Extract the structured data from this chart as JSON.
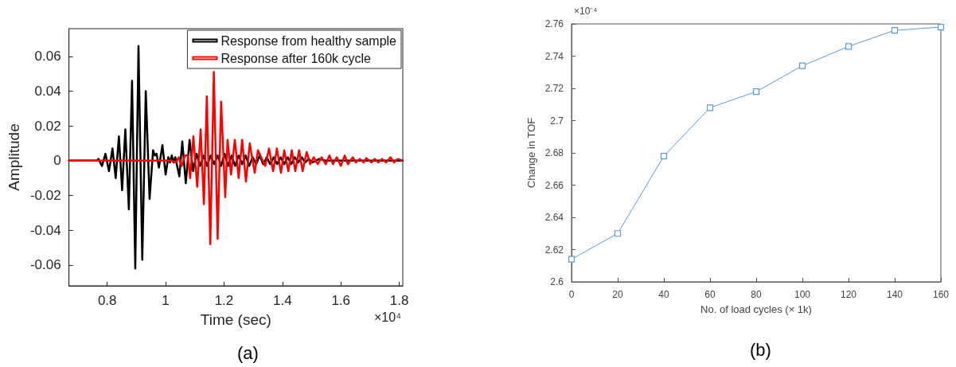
{
  "chart_data": [
    {
      "type": "line",
      "xlabel": "Time (sec)",
      "ylabel": "Amplitude",
      "xlim": [
        0.669,
        1.812
      ],
      "xticks": [
        0.8,
        1,
        1.2,
        1.4,
        1.6,
        1.8
      ],
      "ylim": [
        -0.072,
        0.076
      ],
      "yticks": [
        -0.06,
        -0.04,
        -0.02,
        0,
        0.02,
        0.04,
        0.06
      ],
      "legend": "top right",
      "grid": false,
      "marker": "none",
      "line_style": "solid",
      "annotations": [
        "×10⁴",
        "(a)"
      ],
      "series": [
        {
          "name": "Response from healthy sample",
          "color": "#000000",
          "x": [
            0.669,
            0.764,
            0.77,
            0.782,
            0.794,
            0.806,
            0.818,
            0.829,
            0.84,
            0.851,
            0.862,
            0.874,
            0.885,
            0.896,
            0.907,
            0.92,
            0.932,
            0.945,
            0.957,
            0.963,
            0.969,
            0.977,
            0.989,
            1.0,
            1.009,
            1.015,
            1.021,
            1.027,
            1.033,
            1.047,
            1.057,
            1.069,
            1.082,
            1.094,
            1.106,
            1.118,
            1.13,
            1.142,
            1.154,
            1.166,
            1.178,
            1.19,
            1.202,
            1.214,
            1.226,
            1.238,
            1.25,
            1.262,
            1.274,
            1.286,
            1.298,
            1.31,
            1.322,
            1.334,
            1.346,
            1.358,
            1.37,
            1.382,
            1.394,
            1.406,
            1.418,
            1.43,
            1.442,
            1.454,
            1.466,
            1.478,
            1.49,
            1.502,
            1.526,
            1.55,
            1.6,
            1.812
          ],
          "values": [
            0,
            0,
            0.001,
            -0.003,
            0.004,
            -0.006,
            0.007,
            -0.01,
            0.014,
            -0.017,
            0.018,
            -0.028,
            0.046,
            -0.062,
            0.066,
            -0.057,
            0.04,
            -0.022,
            0.006,
            0.003,
            0.004,
            -0.004,
            0.009,
            -0.008,
            0.002,
            -0.001,
            0.003,
            -0.001,
            0.002,
            -0.009,
            0.011,
            -0.013,
            0.012,
            -0.006,
            0.004,
            -0.003,
            0.003,
            -0.003,
            0.003,
            -0.002,
            0.003,
            -0.003,
            0.004,
            -0.003,
            0.003,
            -0.003,
            0.003,
            -0.002,
            0.003,
            -0.003,
            0.002,
            -0.002,
            0.003,
            -0.002,
            0.002,
            -0.002,
            0.002,
            -0.002,
            0.002,
            -0.002,
            0.002,
            -0.002,
            0.002,
            -0.001,
            0.002,
            -0.001,
            0.001,
            -0.001,
            0.001,
            0,
            0,
            0
          ]
        },
        {
          "name": "Response after 160k cycle",
          "color": "#ff0000",
          "x": [
            0.669,
            1.0,
            1.02,
            1.035,
            1.045,
            1.055,
            1.066,
            1.076,
            1.084,
            1.095,
            1.108,
            1.12,
            1.131,
            1.141,
            1.153,
            1.165,
            1.178,
            1.19,
            1.204,
            1.212,
            1.224,
            1.237,
            1.25,
            1.262,
            1.275,
            1.288,
            1.305,
            1.316,
            1.341,
            1.354,
            1.368,
            1.381,
            1.395,
            1.406,
            1.42,
            1.432,
            1.444,
            1.457,
            1.469,
            1.483,
            1.495,
            1.507,
            1.521,
            1.534,
            1.548,
            1.561,
            1.573,
            1.586,
            1.6,
            1.613,
            1.624,
            1.641,
            1.651,
            1.665,
            1.678,
            1.687,
            1.705,
            1.716,
            1.728,
            1.741,
            1.755,
            1.77,
            1.782,
            1.795,
            1.812
          ],
          "values": [
            0,
            0,
            0,
            -0.001,
            0.002,
            -0.003,
            0.003,
            0.003,
            -0.01,
            0.014,
            -0.015,
            0.018,
            -0.025,
            0.037,
            -0.048,
            0.051,
            -0.045,
            0.034,
            -0.021,
            0.012,
            -0.008,
            0.012,
            -0.01,
            0.012,
            -0.012,
            0.01,
            -0.007,
            0.006,
            -0.003,
            0.007,
            -0.006,
            0.007,
            -0.007,
            0.006,
            -0.006,
            0.006,
            -0.006,
            0.006,
            -0.006,
            0.005,
            -0.002,
            0.002,
            -0.002,
            0.002,
            -0.002,
            0.003,
            -0.002,
            0.002,
            -0.003,
            0.003,
            -0.002,
            0.002,
            -0.001,
            0.001,
            -0.001,
            0.0015,
            -0.001,
            0.001,
            -0.001,
            0.001,
            -0.001,
            0.002,
            -0.001,
            0.001,
            0
          ]
        }
      ]
    },
    {
      "type": "line",
      "xlabel": "No. of load cycles (× 1k)",
      "ylabel": "Change in TOF",
      "xlim": [
        0,
        160
      ],
      "xticks": [
        0,
        20,
        40,
        60,
        80,
        100,
        120,
        140,
        160
      ],
      "ylim": [
        2.6,
        2.76
      ],
      "yticks": [
        2.6,
        2.62,
        2.64,
        2.66,
        2.68,
        2.7,
        2.72,
        2.74,
        2.76
      ],
      "grid": false,
      "marker": "square",
      "line_style": "solid",
      "annotations": [
        "×10⁻⁴",
        "(b)"
      ],
      "series": [
        {
          "color": "#5b9bd5",
          "x": [
            0,
            20,
            40,
            60,
            80,
            100,
            120,
            140,
            160
          ],
          "values": [
            2.614,
            2.63,
            2.678,
            2.708,
            2.718,
            2.734,
            2.746,
            2.756,
            2.758
          ]
        }
      ]
    }
  ]
}
